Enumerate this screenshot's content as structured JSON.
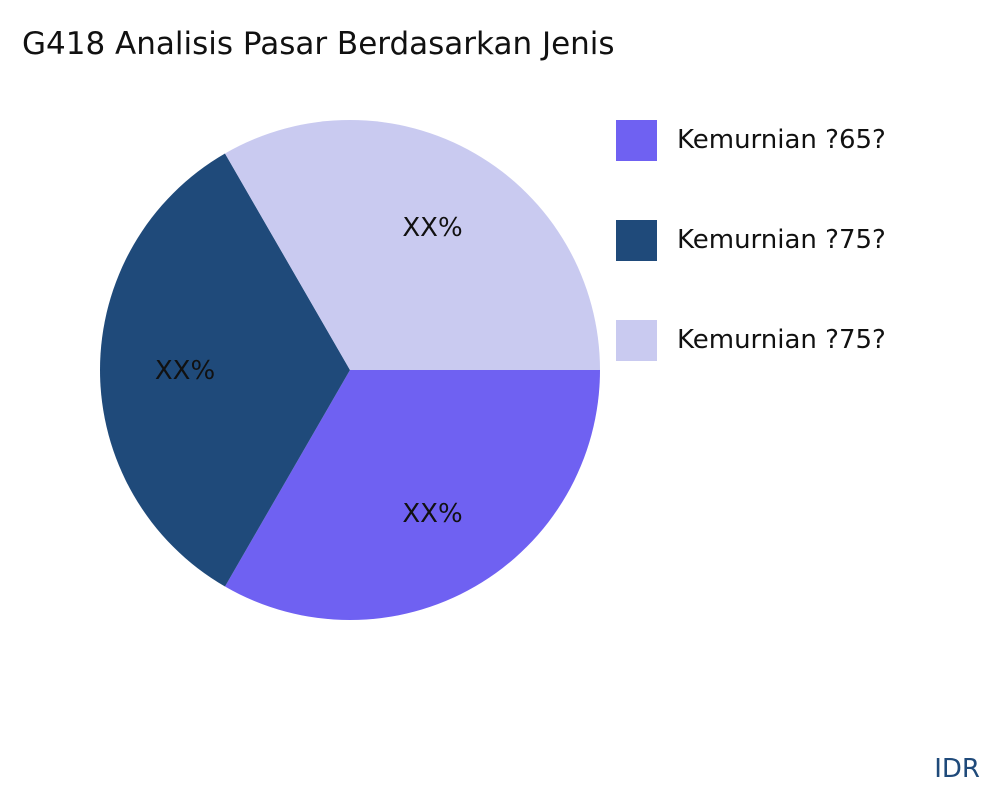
{
  "chart_data": {
    "type": "pie",
    "title": "G418 Analisis Pasar Berdasarkan Jenis",
    "slices": [
      {
        "name": "Kemurnian ?65?",
        "value": 33.33,
        "label": "XX%",
        "color": "#6f61f2"
      },
      {
        "name": "Kemurnian ?75?",
        "value": 33.33,
        "label": "XX%",
        "color": "#1f4a7a"
      },
      {
        "name": "Kemurnian ?75?",
        "value": 33.33,
        "label": "XX%",
        "color": "#c9caf0"
      }
    ],
    "legend_position": "right",
    "start_angle": "3 o'clock",
    "direction": "clockwise"
  },
  "source": "IDR"
}
